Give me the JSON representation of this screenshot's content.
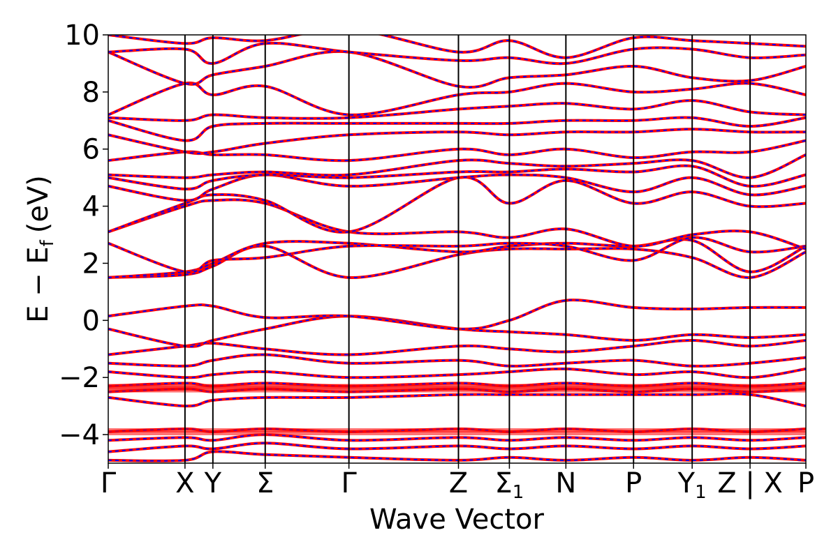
{
  "chart_data": {
    "type": "line",
    "title": "",
    "xlabel": "Wave Vector",
    "ylabel": "E − E",
    "ylabel_sub": "f",
    "ylabel_unit": "(eV)",
    "ylim": [
      -5,
      10
    ],
    "yticks": [
      {
        "value": 10,
        "label": "10"
      },
      {
        "value": 8,
        "label": "8"
      },
      {
        "value": 6,
        "label": "6"
      },
      {
        "value": 4,
        "label": "4"
      },
      {
        "value": 2,
        "label": "2"
      },
      {
        "value": 0,
        "label": "0"
      },
      {
        "value": -2,
        "label": "−2"
      },
      {
        "value": -4,
        "label": "−4"
      }
    ],
    "xlim": [
      0,
      10
    ],
    "high_symmetry_points": [
      {
        "x": 0.0,
        "label": "Γ"
      },
      {
        "x": 1.1,
        "label": "X"
      },
      {
        "x": 1.5,
        "label": "Y"
      },
      {
        "x": 2.25,
        "label": "Σ"
      },
      {
        "x": 3.45,
        "label": "Γ"
      },
      {
        "x": 5.02,
        "label": "Z"
      },
      {
        "x": 5.75,
        "label": "Σ",
        "sub": "1"
      },
      {
        "x": 6.56,
        "label": "N"
      },
      {
        "x": 7.53,
        "label": "P"
      },
      {
        "x": 8.37,
        "label": "Y",
        "sub": "1"
      },
      {
        "x": 9.2,
        "label": "Z|X"
      },
      {
        "x": 10.0,
        "label": "P"
      }
    ],
    "series": [
      {
        "color": "#ff0000",
        "style": "solid",
        "bands": [
          [
            -4.9,
            -4.9,
            -4.6,
            -4.7,
            -4.8,
            -4.9,
            -4.8,
            -4.9,
            -4.8,
            -4.9,
            -4.8,
            -4.9
          ],
          [
            -4.6,
            -4.4,
            -4.5,
            -4.3,
            -4.5,
            -4.4,
            -4.5,
            -4.4,
            -4.5,
            -4.4,
            -4.5,
            -4.4
          ],
          [
            -4.2,
            -4.1,
            -4.2,
            -4.0,
            -4.2,
            -4.1,
            -4.2,
            -4.1,
            -4.2,
            -4.1,
            -4.2,
            -4.1
          ],
          [
            -3.9,
            -3.8,
            -3.9,
            -3.8,
            -3.9,
            -3.8,
            -3.9,
            -3.8,
            -3.9,
            -3.8,
            -3.9,
            -3.8
          ],
          [
            -2.7,
            -3.0,
            -2.8,
            -2.7,
            -2.7,
            -2.6,
            -2.6,
            -2.6,
            -2.6,
            -2.6,
            -2.6,
            -3.0
          ],
          [
            -2.5,
            -2.4,
            -2.5,
            -2.4,
            -2.5,
            -2.4,
            -2.5,
            -2.4,
            -2.5,
            -2.4,
            -2.5,
            -2.4
          ],
          [
            -2.3,
            -2.2,
            -2.3,
            -2.2,
            -2.3,
            -2.2,
            -2.3,
            -2.2,
            -2.3,
            -2.2,
            -2.3,
            -2.2
          ],
          [
            -1.8,
            -2.0,
            -1.9,
            -1.8,
            -2.0,
            -1.9,
            -1.8,
            -1.7,
            -1.9,
            -1.8,
            -2.0,
            -1.7
          ],
          [
            -1.5,
            -1.6,
            -1.4,
            -1.2,
            -1.5,
            -1.4,
            -1.6,
            -1.5,
            -1.4,
            -1.6,
            -1.5,
            -1.3
          ],
          [
            -1.2,
            -0.9,
            -0.8,
            -1.0,
            -1.2,
            -0.9,
            -1.0,
            -1.1,
            -0.9,
            -0.7,
            -0.9,
            -0.7
          ],
          [
            -0.3,
            -0.9,
            -0.7,
            -0.3,
            0.15,
            -0.3,
            -0.4,
            -0.5,
            -0.7,
            -0.5,
            -0.6,
            -0.5
          ],
          [
            0.15,
            0.5,
            0.5,
            0.1,
            0.15,
            -0.3,
            0.0,
            0.7,
            0.45,
            0.4,
            0.45,
            0.45
          ],
          [
            1.5,
            1.6,
            1.9,
            2.6,
            1.5,
            2.3,
            2.5,
            2.5,
            2.5,
            2.2,
            1.5,
            2.4
          ],
          [
            1.5,
            1.7,
            2.0,
            2.7,
            2.7,
            2.4,
            2.6,
            2.7,
            2.6,
            2.8,
            1.7,
            2.6
          ],
          [
            2.7,
            1.7,
            2.1,
            2.2,
            2.6,
            2.6,
            2.7,
            2.6,
            2.1,
            2.9,
            2.4,
            2.6
          ],
          [
            3.1,
            4.0,
            4.2,
            4.1,
            3.1,
            3.1,
            2.9,
            3.2,
            2.6,
            3.0,
            3.1,
            2.5
          ],
          [
            3.1,
            4.1,
            4.4,
            4.2,
            3.1,
            5.0,
            4.1,
            4.9,
            4.1,
            4.5,
            4.0,
            4.1
          ],
          [
            4.7,
            4.2,
            4.6,
            5.1,
            4.7,
            5.0,
            5.1,
            5.0,
            4.5,
            5.0,
            4.4,
            4.7
          ],
          [
            5.0,
            4.6,
            4.9,
            5.1,
            5.0,
            5.2,
            5.2,
            5.3,
            5.2,
            5.4,
            4.7,
            5.1
          ],
          [
            5.1,
            5.0,
            5.1,
            5.2,
            5.1,
            5.6,
            5.5,
            5.4,
            5.5,
            5.6,
            5.0,
            5.8
          ],
          [
            5.6,
            5.9,
            5.8,
            5.8,
            5.6,
            6.0,
            5.8,
            6.0,
            5.7,
            5.9,
            5.9,
            6.3
          ],
          [
            6.5,
            5.9,
            5.9,
            6.2,
            6.5,
            6.6,
            6.5,
            6.6,
            6.6,
            6.7,
            6.6,
            6.6
          ],
          [
            7.0,
            6.3,
            6.8,
            6.9,
            6.9,
            6.9,
            6.9,
            7.0,
            7.0,
            7.1,
            6.8,
            7.1
          ],
          [
            7.1,
            7.0,
            7.2,
            7.1,
            7.1,
            7.4,
            7.5,
            7.6,
            7.4,
            7.7,
            7.3,
            7.2
          ],
          [
            7.2,
            8.3,
            7.9,
            8.2,
            7.2,
            7.9,
            8.0,
            8.3,
            8.0,
            8.1,
            8.3,
            7.9
          ],
          [
            9.4,
            8.3,
            8.6,
            8.9,
            9.4,
            8.2,
            8.5,
            8.6,
            8.9,
            8.5,
            8.4,
            8.9
          ],
          [
            9.4,
            9.5,
            9.0,
            9.7,
            9.4,
            9.1,
            9.2,
            9.0,
            9.5,
            9.5,
            9.2,
            9.3
          ],
          [
            10.0,
            9.7,
            9.9,
            9.8,
            10.2,
            9.4,
            9.8,
            9.2,
            9.9,
            9.8,
            9.7,
            9.6
          ]
        ]
      },
      {
        "color": "#0000ff",
        "style": "dashed",
        "same_as_series": 0
      }
    ],
    "grid": false,
    "legend": "none"
  }
}
